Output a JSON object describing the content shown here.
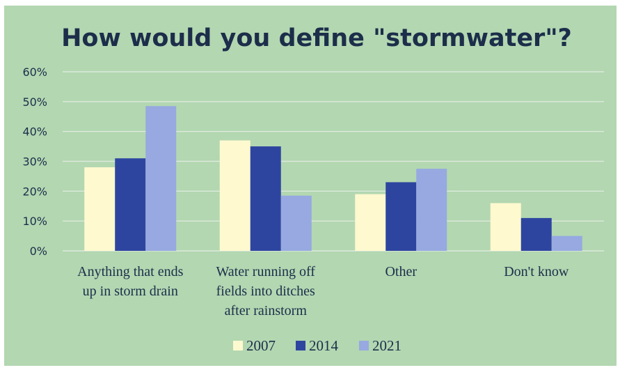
{
  "chart_data": {
    "type": "bar",
    "title": "How would you define \"stormwater\"?",
    "categories": [
      [
        "Anything that ends",
        "up in storm drain"
      ],
      [
        "Water running off",
        "fields into ditches",
        "after rainstorm"
      ],
      [
        "Other"
      ],
      [
        "Don't know"
      ]
    ],
    "series": [
      {
        "name": "2007",
        "values": [
          28,
          37,
          19,
          16
        ],
        "color": "#fef9cf"
      },
      {
        "name": "2014",
        "values": [
          31,
          35,
          23,
          11
        ],
        "color": "#2e45a0"
      },
      {
        "name": "2021",
        "values": [
          48.5,
          18.5,
          27.5,
          5
        ],
        "color": "#97a9e0"
      }
    ],
    "yticks": [
      "0%",
      "10%",
      "20%",
      "30%",
      "40%",
      "50%",
      "60%"
    ],
    "ylim": [
      0,
      60
    ],
    "grid": true,
    "legend_position": "bottom",
    "background_color": "#b3d7b1",
    "gridline_color": "#dbeadb"
  }
}
